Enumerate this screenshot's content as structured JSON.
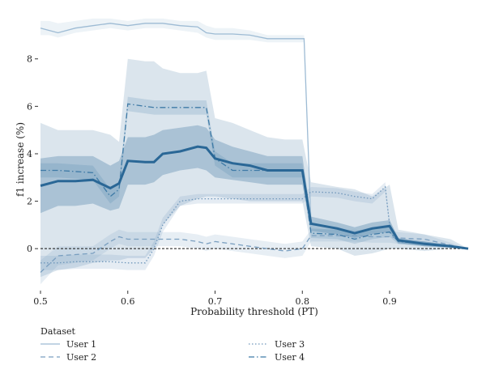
{
  "chart_data": {
    "type": "line",
    "xlabel": "Probability threshold (PT)",
    "ylabel": "f1 increase (%)",
    "xlim": [
      0.5,
      0.99
    ],
    "ylim": [
      -1.7,
      9.8
    ],
    "xticks": [
      0.5,
      0.6,
      0.7,
      0.8,
      0.9
    ],
    "xtick_labels": [
      "0.5",
      "0.6",
      "0.7",
      "0.8",
      "0.9"
    ],
    "yticks": [
      0,
      2,
      4,
      6,
      8
    ],
    "ytick_labels": [
      "0",
      "2",
      "4",
      "6",
      "8"
    ],
    "grid": false,
    "zero_reference_line": 0,
    "legend": {
      "title": "Dataset",
      "placement": "bottom",
      "entries": [
        "User 1",
        "User 2",
        "User 3",
        "User 4"
      ]
    },
    "mean": {
      "color": "#2a6796",
      "x": [
        0.5,
        0.52,
        0.54,
        0.56,
        0.58,
        0.59,
        0.6,
        0.62,
        0.63,
        0.64,
        0.66,
        0.68,
        0.69,
        0.7,
        0.72,
        0.74,
        0.76,
        0.78,
        0.8,
        0.81,
        0.84,
        0.86,
        0.88,
        0.9,
        0.91,
        0.94,
        0.97,
        0.99
      ],
      "y": [
        2.65,
        2.85,
        2.85,
        2.9,
        2.55,
        2.75,
        3.7,
        3.65,
        3.65,
        4.0,
        4.1,
        4.3,
        4.25,
        3.8,
        3.6,
        3.5,
        3.3,
        3.3,
        3.3,
        1.05,
        0.85,
        0.65,
        0.85,
        0.95,
        0.35,
        0.2,
        0.1,
        0.0
      ],
      "band_inner_low": [
        1.5,
        1.8,
        1.8,
        1.9,
        1.6,
        1.7,
        2.7,
        2.7,
        2.8,
        3.1,
        3.3,
        3.4,
        3.3,
        3.0,
        2.9,
        2.8,
        2.7,
        2.7,
        2.7,
        0.75,
        0.6,
        0.45,
        0.6,
        0.7,
        0.25,
        0.1,
        0.05,
        0.0
      ],
      "band_inner_high": [
        3.8,
        3.9,
        3.9,
        3.9,
        3.5,
        3.7,
        4.7,
        4.7,
        4.8,
        5.0,
        5.1,
        5.2,
        5.1,
        4.6,
        4.3,
        4.1,
        3.9,
        3.9,
        3.9,
        1.35,
        1.1,
        0.9,
        1.1,
        1.2,
        0.45,
        0.3,
        0.15,
        0.0
      ],
      "band_outer_low": [
        -1.2,
        -0.9,
        -0.8,
        -0.6,
        -0.5,
        -0.5,
        -0.4,
        -0.4,
        0.0,
        1.0,
        1.8,
        2.1,
        2.2,
        2.2,
        2.1,
        2.0,
        2.0,
        2.0,
        2.0,
        0.1,
        0.0,
        -0.3,
        -0.2,
        0.0,
        0.0,
        -0.1,
        0.0,
        0.0
      ],
      "band_outer_high": [
        5.3,
        5.0,
        5.0,
        5.0,
        4.8,
        4.5,
        8.0,
        7.9,
        7.9,
        7.6,
        7.4,
        7.4,
        7.5,
        5.5,
        5.3,
        5.0,
        4.7,
        4.6,
        4.6,
        2.8,
        2.6,
        2.5,
        2.2,
        2.7,
        0.8,
        0.6,
        0.4,
        0.0
      ]
    },
    "series": [
      {
        "name": "User 1",
        "style": "solid",
        "color": "#9dbbd4",
        "x": [
          0.5,
          0.51,
          0.52,
          0.54,
          0.56,
          0.58,
          0.6,
          0.62,
          0.64,
          0.66,
          0.68,
          0.69,
          0.7,
          0.72,
          0.74,
          0.76,
          0.78,
          0.8,
          0.802,
          0.81,
          0.84,
          0.86,
          0.88,
          0.9,
          0.91,
          0.94,
          0.97,
          0.99
        ],
        "y": [
          9.3,
          9.2,
          9.1,
          9.3,
          9.4,
          9.5,
          9.4,
          9.5,
          9.5,
          9.4,
          9.35,
          9.1,
          9.05,
          9.05,
          9.0,
          8.85,
          8.85,
          8.85,
          8.85,
          1.0,
          0.9,
          0.7,
          0.9,
          1.0,
          0.3,
          0.2,
          0.1,
          0.0
        ],
        "band_low": [
          9.0,
          9.0,
          8.9,
          9.1,
          9.2,
          9.3,
          9.2,
          9.3,
          9.3,
          9.2,
          9.1,
          8.9,
          8.8,
          8.8,
          8.8,
          8.7,
          8.7,
          8.7,
          8.7,
          0.8,
          0.7,
          0.5,
          0.7,
          0.8,
          0.2,
          0.1,
          0.05,
          0.0
        ],
        "band_high": [
          9.6,
          9.6,
          9.5,
          9.6,
          9.7,
          9.7,
          9.6,
          9.7,
          9.7,
          9.6,
          9.6,
          9.4,
          9.3,
          9.3,
          9.2,
          9.0,
          9.0,
          9.0,
          9.0,
          1.2,
          1.1,
          0.9,
          1.1,
          1.2,
          0.4,
          0.3,
          0.15,
          0.0
        ]
      },
      {
        "name": "User 2",
        "style": "dashed",
        "color": "#7a9fc0",
        "x": [
          0.5,
          0.52,
          0.54,
          0.56,
          0.58,
          0.59,
          0.6,
          0.62,
          0.64,
          0.66,
          0.68,
          0.69,
          0.7,
          0.72,
          0.74,
          0.76,
          0.78,
          0.8,
          0.81,
          0.84,
          0.86,
          0.88,
          0.9,
          0.91,
          0.94,
          0.97,
          0.99
        ],
        "y": [
          -1.0,
          -0.3,
          -0.25,
          -0.2,
          0.3,
          0.5,
          0.4,
          0.4,
          0.4,
          0.4,
          0.3,
          0.2,
          0.3,
          0.2,
          0.1,
          0.0,
          -0.1,
          0.0,
          0.55,
          0.55,
          0.55,
          0.5,
          0.5,
          0.45,
          0.4,
          0.15,
          0.0
        ],
        "band_low": [
          -1.5,
          -0.7,
          -0.6,
          -0.5,
          0.0,
          0.2,
          0.1,
          0.1,
          0.1,
          0.1,
          0.0,
          -0.1,
          0.0,
          -0.1,
          -0.2,
          -0.3,
          -0.4,
          -0.3,
          0.3,
          0.3,
          0.3,
          0.25,
          0.25,
          0.2,
          0.2,
          0.05,
          0.0
        ],
        "band_high": [
          -0.5,
          0.1,
          0.1,
          0.1,
          0.6,
          0.8,
          0.7,
          0.7,
          0.7,
          0.7,
          0.6,
          0.5,
          0.6,
          0.5,
          0.4,
          0.3,
          0.2,
          0.3,
          0.8,
          0.8,
          0.8,
          0.75,
          0.75,
          0.7,
          0.6,
          0.25,
          0.0
        ]
      },
      {
        "name": "User 3",
        "style": "dotted",
        "color": "#6f97bb",
        "x": [
          0.5,
          0.52,
          0.54,
          0.56,
          0.58,
          0.6,
          0.62,
          0.63,
          0.64,
          0.66,
          0.68,
          0.7,
          0.72,
          0.74,
          0.76,
          0.78,
          0.8,
          0.81,
          0.84,
          0.86,
          0.88,
          0.895,
          0.9,
          0.91,
          0.94,
          0.97,
          0.99
        ],
        "y": [
          -0.6,
          -0.6,
          -0.55,
          -0.55,
          -0.55,
          -0.6,
          -0.6,
          0.0,
          1.0,
          2.0,
          2.1,
          2.1,
          2.1,
          2.1,
          2.1,
          2.1,
          2.1,
          2.4,
          2.35,
          2.2,
          2.1,
          2.6,
          1.0,
          0.3,
          0.2,
          0.1,
          0.0
        ],
        "band_low": [
          -0.9,
          -0.9,
          -0.85,
          -0.85,
          -0.85,
          -0.9,
          -0.9,
          -0.3,
          0.7,
          1.8,
          1.9,
          1.9,
          1.9,
          1.9,
          1.9,
          1.9,
          1.9,
          2.2,
          2.15,
          2.0,
          1.9,
          2.4,
          0.8,
          0.2,
          0.1,
          0.05,
          0.0
        ],
        "band_high": [
          -0.3,
          -0.3,
          -0.25,
          -0.25,
          -0.25,
          -0.3,
          -0.3,
          0.3,
          1.3,
          2.2,
          2.3,
          2.3,
          2.3,
          2.3,
          2.3,
          2.3,
          2.3,
          2.6,
          2.55,
          2.4,
          2.3,
          2.8,
          1.2,
          0.4,
          0.3,
          0.15,
          0.0
        ]
      },
      {
        "name": "User 4",
        "style": "dashdot",
        "color": "#3e7aa6",
        "x": [
          0.5,
          0.52,
          0.54,
          0.56,
          0.58,
          0.59,
          0.6,
          0.62,
          0.63,
          0.64,
          0.66,
          0.68,
          0.69,
          0.7,
          0.72,
          0.74,
          0.76,
          0.78,
          0.8,
          0.81,
          0.84,
          0.86,
          0.88,
          0.9,
          0.91,
          0.94,
          0.97,
          0.99
        ],
        "y": [
          3.3,
          3.3,
          3.25,
          3.2,
          2.2,
          2.5,
          6.1,
          6.0,
          5.95,
          5.95,
          5.95,
          5.95,
          5.95,
          3.8,
          3.3,
          3.3,
          3.3,
          3.3,
          3.3,
          0.65,
          0.6,
          0.4,
          0.6,
          0.7,
          0.3,
          0.2,
          0.1,
          0.0
        ],
        "band_low": [
          3.0,
          3.0,
          2.95,
          2.9,
          1.9,
          2.2,
          5.8,
          5.7,
          5.65,
          5.65,
          5.65,
          5.65,
          5.65,
          3.5,
          3.0,
          3.0,
          3.0,
          3.0,
          3.0,
          0.45,
          0.4,
          0.2,
          0.4,
          0.5,
          0.2,
          0.1,
          0.05,
          0.0
        ],
        "band_high": [
          3.6,
          3.6,
          3.55,
          3.5,
          2.5,
          2.8,
          6.4,
          6.3,
          6.25,
          6.25,
          6.25,
          6.25,
          6.25,
          4.1,
          3.6,
          3.6,
          3.6,
          3.6,
          3.6,
          0.85,
          0.8,
          0.6,
          0.8,
          0.9,
          0.4,
          0.3,
          0.15,
          0.0
        ]
      }
    ]
  }
}
